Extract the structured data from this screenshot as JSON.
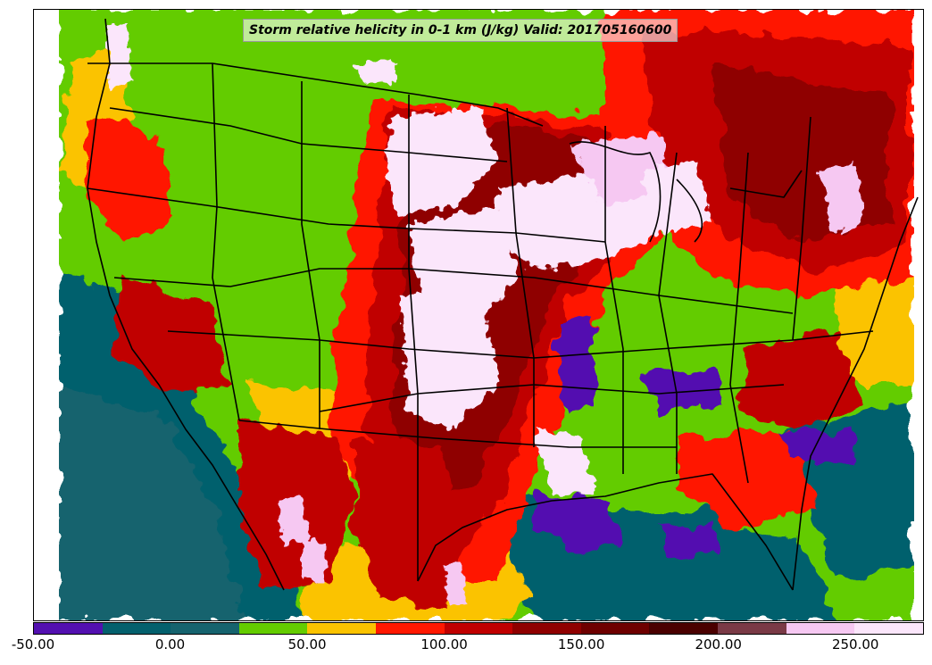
{
  "title": "Storm relative helicity in 0-1 km (J/kg) Valid: 201705160600",
  "colorbar": {
    "min": -50,
    "max": 275,
    "colors": [
      "#5310b0",
      "#04606d",
      "#16636e",
      "#64cc00",
      "#fbc300",
      "#ff1800",
      "#c00000",
      "#8f0000",
      "#6e0000",
      "#4a0000",
      "#7a3a46",
      "#f6c8f2",
      "#fbe6fb"
    ],
    "tick_labels": [
      "-50.00",
      "0.00",
      "50.00",
      "100.00",
      "150.00",
      "200.00",
      "250.00"
    ],
    "tick_values": [
      -50,
      0,
      50,
      100,
      150,
      200,
      250
    ]
  }
}
